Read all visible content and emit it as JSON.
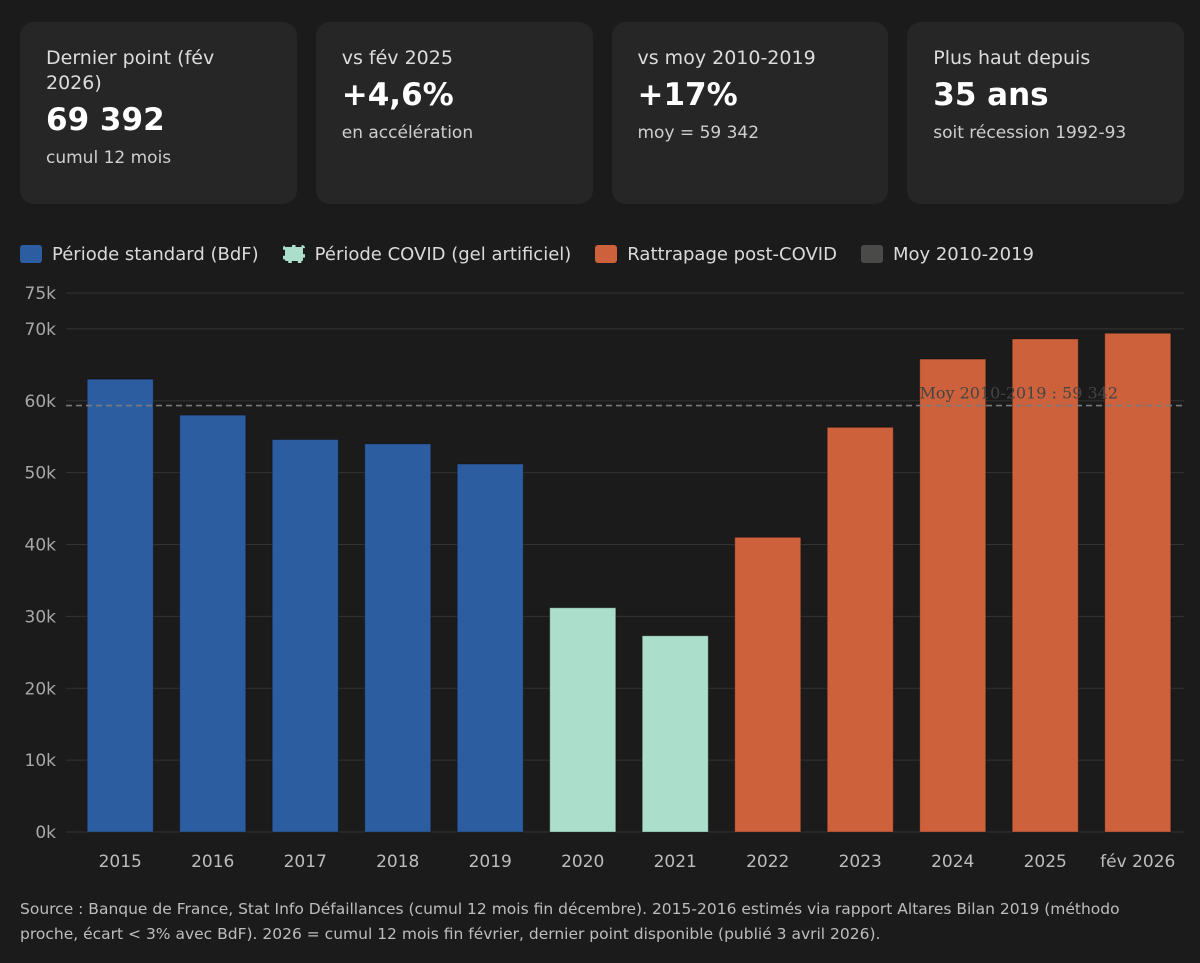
{
  "cards": [
    {
      "label": "Dernier point (fév 2026)",
      "value": "69 392",
      "sub": "cumul 12 mois"
    },
    {
      "label": "vs fév 2025",
      "value": "+4,6%",
      "sub": "en accélération"
    },
    {
      "label": "vs moy 2010-2019",
      "value": "+17%",
      "sub": "moy = 59 342"
    },
    {
      "label": "Plus haut depuis",
      "value": "35 ans",
      "sub": "soit récession 1992-93"
    }
  ],
  "legend": [
    {
      "label": "Période standard (BdF)",
      "color": "#2d5da1"
    },
    {
      "label": "Période COVID (gel artificiel)",
      "color": "#acdecc"
    },
    {
      "label": "Rattrapage post-COVID",
      "color": "#cc613b"
    },
    {
      "label": "Moy 2010-2019",
      "color": "#4a4a48"
    }
  ],
  "chart_data": {
    "type": "bar",
    "categories": [
      "2015",
      "2016",
      "2017",
      "2018",
      "2019",
      "2020",
      "2021",
      "2022",
      "2023",
      "2024",
      "2025",
      "fév 2026"
    ],
    "values": [
      63000,
      58000,
      54600,
      54000,
      51200,
      31200,
      27300,
      41000,
      56300,
      65800,
      68600,
      69392
    ],
    "period": [
      "standard",
      "standard",
      "standard",
      "standard",
      "standard",
      "covid",
      "covid",
      "post",
      "post",
      "post",
      "post",
      "post"
    ],
    "colors": {
      "standard": "#2d5da1",
      "covid": "#acdecc",
      "post": "#cc613b"
    },
    "ylim": [
      0,
      75000
    ],
    "yticks": [
      0,
      10000,
      20000,
      30000,
      40000,
      50000,
      60000,
      70000,
      75000
    ],
    "ytick_labels": [
      "0k",
      "10k",
      "20k",
      "30k",
      "40k",
      "50k",
      "60k",
      "70k",
      "75k"
    ],
    "reference_line": {
      "value": 59342,
      "label": "Moy 2010-2019 : 59 342"
    },
    "grid": true
  },
  "source": "Source : Banque de France, Stat Info Défaillances (cumul 12 mois fin décembre). 2015-2016 estimés via rapport Altares Bilan 2019 (méthodo proche, écart < 3% avec BdF). 2026 = cumul 12 mois fin février, dernier point disponible (publié 3 avril 2026)."
}
